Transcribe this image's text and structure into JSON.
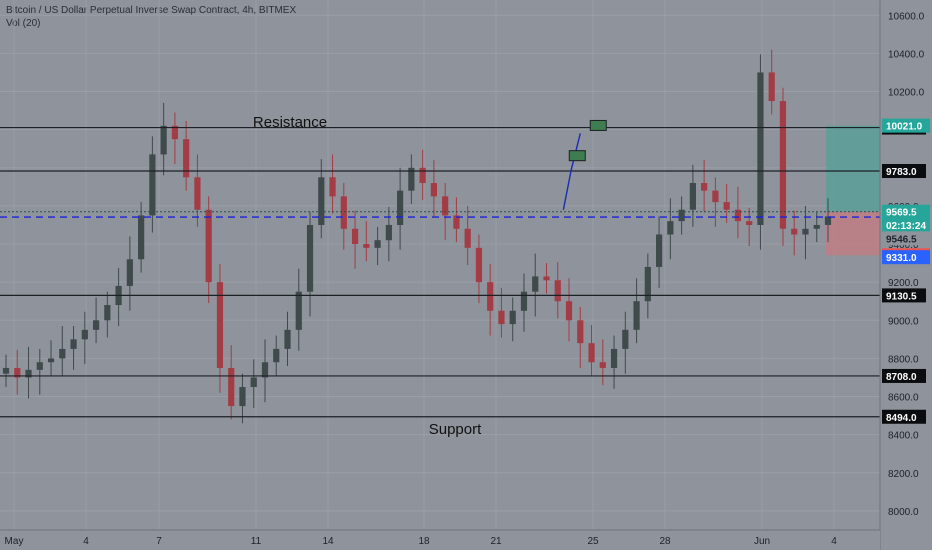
{
  "header": {
    "title": "Bitcoin / US Dollar Perpetual Inverse Swap Contract, 4h, BITMEX",
    "volume": "Vol (20)"
  },
  "annotations": {
    "resistance": "Resistance",
    "support": "Support"
  },
  "chart_data": {
    "type": "candlestick",
    "price_range": [
      7900,
      10680
    ],
    "y_ticks": [
      "8000.0",
      "8200.0",
      "8400.0",
      "8600.0",
      "8800.0",
      "9000.0",
      "9200.0",
      "9400.0",
      "9600.0",
      "9800.0",
      "10000.0",
      "10200.0",
      "10400.0",
      "10600.0"
    ],
    "x_ticks": [
      "May",
      "4",
      "7",
      "11",
      "14",
      "18",
      "21",
      "25",
      "28",
      "Jun",
      "4"
    ],
    "grid": true,
    "horizontal_levels": [
      {
        "price": 10011.0,
        "label": "10011.0",
        "style": "solid"
      },
      {
        "price": 9783.0,
        "label": "9783.0",
        "style": "solid"
      },
      {
        "price": 9541.5,
        "label": "9541.5",
        "style": "blue-dashed"
      },
      {
        "price": 9130.5,
        "label": "9130.5",
        "style": "solid"
      },
      {
        "price": 8708.0,
        "label": "8708.0",
        "style": "solid"
      },
      {
        "price": 8494.0,
        "label": "8494.0",
        "style": "solid"
      }
    ],
    "price_tags": [
      {
        "price": 10021.0,
        "label": "10021.0",
        "color": "#26a69a"
      },
      {
        "price": 9569.5,
        "label": "9569.5",
        "color": "#26a69a"
      },
      {
        "price": 9500.0,
        "label": "02:13:24",
        "color": "#26a69a"
      },
      {
        "price": 9430.0,
        "label": "9546.5",
        "color": "#8f939b"
      },
      {
        "price": 9341.0,
        "label": "9341.0",
        "color": "#ef5350"
      },
      {
        "price": 9331.0,
        "label": "9331.0",
        "color": "#2962ff"
      }
    ],
    "position": {
      "entry": 9569.5,
      "target": 10021.0,
      "stop": 9341.0
    },
    "waypoints": [
      {
        "date_index": 49.5,
        "price": 9580
      },
      {
        "date_index": 50.2,
        "price": 9790
      },
      {
        "date_index": 51.0,
        "price": 9980
      }
    ],
    "closes": [
      8750,
      8700,
      8740,
      8780,
      8800,
      8850,
      8900,
      8950,
      9000,
      9080,
      9180,
      9320,
      9550,
      9870,
      10020,
      9950,
      9750,
      9580,
      9200,
      8750,
      8550,
      8650,
      8700,
      8780,
      8850,
      8950,
      9150,
      9500,
      9750,
      9650,
      9480,
      9400,
      9380,
      9420,
      9500,
      9680,
      9800,
      9720,
      9650,
      9550,
      9480,
      9380,
      9200,
      9050,
      8980,
      9050,
      9150,
      9230,
      9210,
      9100,
      9000,
      8880,
      8780,
      8750,
      8850,
      8950,
      9100,
      9280,
      9450,
      9520,
      9580,
      9720,
      9680,
      9620,
      9580,
      9520,
      9500,
      10300,
      10150,
      9480,
      9450,
      9480,
      9500,
      9545
    ],
    "labels": {
      "last_price": "9569.5",
      "countdown": "02:13:24"
    }
  },
  "colors": {
    "background": "#8f939b",
    "up": "#3f4a4b",
    "down": "#a33c44",
    "level": "#1d2025",
    "blue_level": "#1a23d9",
    "target_zone": "#5a9f9a",
    "stop_zone": "#c07e84"
  }
}
